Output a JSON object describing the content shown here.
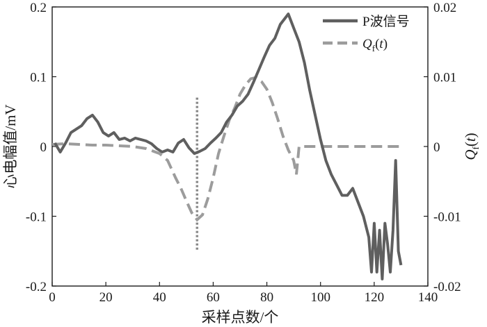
{
  "chart_data": {
    "type": "line",
    "x_label": "采样点数/个",
    "y_left_label": "心电幅值/mV",
    "y_right_label": "Q_f(t)",
    "x_ticks": [
      "0",
      "20",
      "40",
      "60",
      "80",
      "100",
      "120",
      "140"
    ],
    "y_left_ticks": [
      "-0.2",
      "-0.1",
      "0",
      "0.1",
      "0.2"
    ],
    "y_right_ticks": [
      "-0.02",
      "-0.01",
      "0",
      "0.01",
      "0.02"
    ],
    "xlim": [
      0,
      140
    ],
    "y_left_lim": [
      -0.2,
      0.2
    ],
    "y_right_lim": [
      -0.02,
      0.02
    ],
    "marker_line": {
      "x": 54,
      "y_range": [
        -0.15,
        0.07
      ],
      "style": "dotted"
    },
    "colors": {
      "p_wave": "#5f5f5f",
      "qf": "#9c9c9c",
      "marker": "#888888",
      "axis": "#1a1a1a"
    },
    "legend": {
      "position": "top-right"
    },
    "series": [
      {
        "name": "P波信号",
        "axis": "left",
        "style": "solid",
        "points": [
          [
            1,
            0.005
          ],
          [
            3,
            -0.008
          ],
          [
            5,
            0.005
          ],
          [
            7,
            0.02
          ],
          [
            9,
            0.025
          ],
          [
            11,
            0.03
          ],
          [
            13,
            0.04
          ],
          [
            15,
            0.045
          ],
          [
            17,
            0.035
          ],
          [
            19,
            0.02
          ],
          [
            21,
            0.015
          ],
          [
            23,
            0.02
          ],
          [
            25,
            0.01
          ],
          [
            27,
            0.012
          ],
          [
            29,
            0.008
          ],
          [
            31,
            0.012
          ],
          [
            33,
            0.01
          ],
          [
            35,
            0.008
          ],
          [
            37,
            0.004
          ],
          [
            39,
            -0.003
          ],
          [
            41,
            -0.008
          ],
          [
            43,
            -0.005
          ],
          [
            45,
            -0.008
          ],
          [
            47,
            0.005
          ],
          [
            49,
            0.01
          ],
          [
            51,
            -0.002
          ],
          [
            53,
            -0.01
          ],
          [
            55,
            -0.007
          ],
          [
            57,
            -0.003
          ],
          [
            59,
            0.005
          ],
          [
            61,
            0.012
          ],
          [
            63,
            0.02
          ],
          [
            65,
            0.035
          ],
          [
            67,
            0.045
          ],
          [
            69,
            0.058
          ],
          [
            71,
            0.065
          ],
          [
            73,
            0.075
          ],
          [
            75,
            0.092
          ],
          [
            77,
            0.11
          ],
          [
            79,
            0.128
          ],
          [
            81,
            0.145
          ],
          [
            83,
            0.155
          ],
          [
            85,
            0.175
          ],
          [
            87,
            0.185
          ],
          [
            88,
            0.19
          ],
          [
            90,
            0.17
          ],
          [
            92,
            0.15
          ],
          [
            94,
            0.12
          ],
          [
            96,
            0.08
          ],
          [
            98,
            0.045
          ],
          [
            100,
            0.01
          ],
          [
            102,
            -0.02
          ],
          [
            104,
            -0.04
          ],
          [
            106,
            -0.055
          ],
          [
            108,
            -0.07
          ],
          [
            110,
            -0.07
          ],
          [
            112,
            -0.06
          ],
          [
            114,
            -0.08
          ],
          [
            116,
            -0.1
          ],
          [
            118,
            -0.13
          ],
          [
            119,
            -0.18
          ],
          [
            120,
            -0.11
          ],
          [
            121,
            -0.18
          ],
          [
            122,
            -0.12
          ],
          [
            123,
            -0.19
          ],
          [
            124,
            -0.11
          ],
          [
            125,
            -0.14
          ],
          [
            126,
            -0.18
          ],
          [
            127,
            -0.12
          ],
          [
            128,
            -0.02
          ],
          [
            129,
            -0.15
          ],
          [
            130,
            -0.17
          ]
        ]
      },
      {
        "name": "Q_f(t)",
        "axis": "right",
        "style": "dashed",
        "points": [
          [
            0,
            0.0003
          ],
          [
            5,
            0.0004
          ],
          [
            10,
            0.0003
          ],
          [
            15,
            0.0002
          ],
          [
            20,
            0.0002
          ],
          [
            25,
            0.0001
          ],
          [
            30,
            0.0
          ],
          [
            35,
            -0.0003
          ],
          [
            40,
            -0.001
          ],
          [
            43,
            -0.002
          ],
          [
            46,
            -0.0045
          ],
          [
            48,
            -0.006
          ],
          [
            50,
            -0.0078
          ],
          [
            52,
            -0.0095
          ],
          [
            54,
            -0.0105
          ],
          [
            56,
            -0.0098
          ],
          [
            58,
            -0.0075
          ],
          [
            60,
            -0.0045
          ],
          [
            62,
            -0.001
          ],
          [
            64,
            0.0015
          ],
          [
            66,
            0.0038
          ],
          [
            68,
            0.0055
          ],
          [
            70,
            0.0075
          ],
          [
            72,
            0.0088
          ],
          [
            74,
            0.0097
          ],
          [
            76,
            0.0099
          ],
          [
            78,
            0.0093
          ],
          [
            80,
            0.0082
          ],
          [
            82,
            0.0063
          ],
          [
            84,
            0.004
          ],
          [
            86,
            0.0015
          ],
          [
            88,
            -0.0005
          ],
          [
            90,
            -0.002
          ],
          [
            91,
            -0.004
          ],
          [
            92,
            0.0
          ],
          [
            100,
            0.0
          ],
          [
            110,
            0.0
          ],
          [
            120,
            0.0
          ],
          [
            130,
            0.0
          ]
        ]
      }
    ]
  }
}
